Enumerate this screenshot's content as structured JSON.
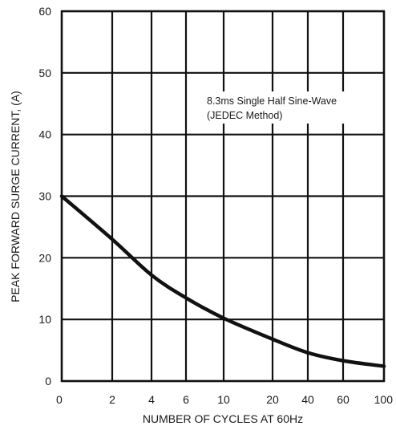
{
  "chart_data": {
    "type": "line",
    "title": "",
    "xlabel": "NUMBER OF CYCLES AT 60Hz",
    "ylabel": "PEAK FORWARD SURGE CURRENT, (A)",
    "x_scale": "log",
    "x_ticks": [
      "0",
      "2",
      "4",
      "6",
      "10",
      "20",
      "40",
      "60",
      "100"
    ],
    "y_ticks": [
      "0",
      "10",
      "20",
      "30",
      "40",
      "50",
      "60"
    ],
    "ylim": [
      0,
      60
    ],
    "grid": true,
    "annotation": {
      "line1": "8.3ms Single Half Sine-Wave",
      "line2": "(JEDEC Method)"
    },
    "series": [
      {
        "name": "",
        "x": [
          "0",
          "2",
          "4",
          "6",
          "10",
          "20",
          "40",
          "60",
          "100"
        ],
        "y": [
          30,
          23,
          17.2,
          13.5,
          10.2,
          6.8,
          4.6,
          3.3,
          2.4
        ]
      }
    ]
  }
}
